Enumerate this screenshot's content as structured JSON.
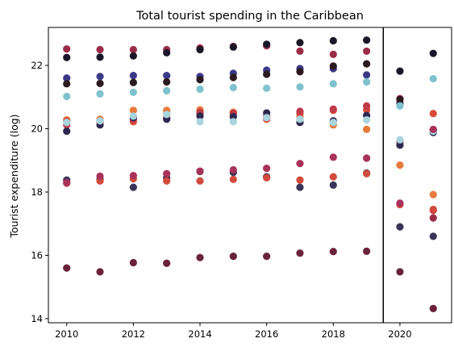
{
  "chart_data": {
    "type": "scatter",
    "title": "Total tourist spending in the Caribbean",
    "xlabel": "",
    "ylabel": "Tourist expenditure (log)",
    "xlim": [
      2009.45,
      2021.55
    ],
    "ylim": [
      13.87,
      23.2
    ],
    "x_ticks": [
      2010,
      2012,
      2014,
      2016,
      2018,
      2020
    ],
    "y_ticks": [
      14,
      16,
      18,
      20,
      22
    ],
    "vline": 2019.5,
    "grid": false,
    "legend": "none",
    "series": [
      {
        "color": "#9b2c48",
        "x": [
          2010,
          2011,
          2012,
          2013,
          2014,
          2015,
          2016,
          2017,
          2018,
          2019,
          2020,
          2021
        ],
        "y": [
          22.52,
          22.5,
          22.5,
          22.5,
          22.55,
          22.6,
          22.62,
          22.45,
          22.35,
          22.45,
          20.95,
          17.18
        ]
      },
      {
        "color": "#1c1728",
        "x": [
          2010,
          2011,
          2012,
          2013,
          2014,
          2015,
          2016,
          2017,
          2018,
          2019,
          2020,
          2021
        ],
        "y": [
          22.25,
          22.26,
          22.3,
          22.4,
          22.5,
          22.58,
          22.67,
          22.72,
          22.78,
          22.8,
          21.82,
          22.38
        ]
      },
      {
        "color": "#3b3986",
        "x": [
          2010,
          2011,
          2012,
          2013,
          2014,
          2015,
          2016,
          2017,
          2018,
          2019,
          2020,
          2021
        ],
        "y": [
          21.6,
          21.65,
          21.68,
          21.68,
          21.65,
          21.75,
          21.85,
          21.9,
          21.9,
          21.7,
          20.8,
          19.95
        ]
      },
      {
        "color": "#2b1a1f",
        "x": [
          2010,
          2011,
          2012,
          2013,
          2014,
          2015,
          2016,
          2017,
          2018,
          2019,
          2020,
          2021
        ],
        "y": [
          21.42,
          21.43,
          21.46,
          21.48,
          21.55,
          21.62,
          21.72,
          21.8,
          21.98,
          22.05,
          20.92,
          19.95
        ]
      },
      {
        "color": "#7fc1cf",
        "x": [
          2010,
          2011,
          2012,
          2013,
          2014,
          2015,
          2016,
          2017,
          2018,
          2019,
          2020,
          2021
        ],
        "y": [
          21.02,
          21.1,
          21.15,
          21.2,
          21.25,
          21.3,
          21.28,
          21.32,
          21.42,
          21.48,
          20.72,
          21.58
        ]
      },
      {
        "color": "#e77b3c",
        "x": [
          2010,
          2011,
          2012,
          2013,
          2014,
          2015,
          2016,
          2017,
          2018,
          2019,
          2020,
          2021
        ],
        "y": [
          20.28,
          20.3,
          20.58,
          20.58,
          20.6,
          20.52,
          20.4,
          20.38,
          20.12,
          19.98,
          18.85,
          17.92
        ]
      },
      {
        "color": "#d94a38",
        "x": [
          2010,
          2011,
          2012,
          2013,
          2014,
          2015,
          2016,
          2017,
          2018,
          2019,
          2020,
          2021
        ],
        "y": [
          20.25,
          20.25,
          20.22,
          20.35,
          20.45,
          20.5,
          20.3,
          20.48,
          20.58,
          20.6,
          19.58,
          20.48
        ]
      },
      {
        "color": "#c03a48",
        "x": [
          2010,
          2011,
          2012,
          2013,
          2014,
          2015,
          2016,
          2017,
          2018,
          2019,
          2020,
          2021
        ],
        "y": [
          20.12,
          20.2,
          20.3,
          20.45,
          20.52,
          20.48,
          20.38,
          20.55,
          20.62,
          20.72,
          19.6,
          17.42
        ]
      },
      {
        "color": "#2e2850",
        "x": [
          2010,
          2011,
          2012,
          2013,
          2014,
          2015,
          2016,
          2017,
          2018,
          2019,
          2020,
          2021
        ],
        "y": [
          19.92,
          20.12,
          20.35,
          20.3,
          20.4,
          20.38,
          20.5,
          20.2,
          20.25,
          20.42,
          19.48,
          19.88
        ]
      },
      {
        "color": "#a8d4dd",
        "x": [
          2010,
          2011,
          2012,
          2013,
          2014,
          2015,
          2016,
          2017,
          2018,
          2019,
          2020,
          2021
        ],
        "y": [
          20.2,
          20.25,
          20.4,
          20.45,
          20.22,
          20.22,
          20.35,
          20.3,
          20.2,
          20.28,
          19.65,
          19.92
        ]
      },
      {
        "color": "#3a3458",
        "x": [
          2010,
          2011,
          2012,
          2013,
          2014,
          2015,
          2016,
          2017,
          2018,
          2019,
          2020,
          2021
        ],
        "y": [
          18.38,
          18.4,
          18.15,
          18.45,
          18.65,
          18.62,
          18.48,
          18.15,
          18.22,
          18.6,
          16.9,
          16.6
        ]
      },
      {
        "color": "#d24a3c",
        "x": [
          2010,
          2011,
          2012,
          2013,
          2014,
          2015,
          2016,
          2017,
          2018,
          2019,
          2020,
          2021
        ],
        "y": [
          18.28,
          18.35,
          18.42,
          18.35,
          18.35,
          18.4,
          18.45,
          18.38,
          18.48,
          18.58,
          17.6,
          17.45
        ]
      },
      {
        "color": "#a8325a",
        "x": [
          2010,
          2011,
          2012,
          2013,
          2014,
          2015,
          2016,
          2017,
          2018,
          2019,
          2020,
          2021
        ],
        "y": [
          18.3,
          18.5,
          18.52,
          18.58,
          18.66,
          18.7,
          18.75,
          18.9,
          19.1,
          19.07,
          17.65,
          19.98
        ]
      },
      {
        "color": "#6a2338",
        "x": [
          2010,
          2011,
          2012,
          2013,
          2014,
          2015,
          2016,
          2017,
          2018,
          2019,
          2020,
          2021
        ],
        "y": [
          15.6,
          15.48,
          15.77,
          15.75,
          15.93,
          15.97,
          15.97,
          16.07,
          16.12,
          16.13,
          15.48,
          14.32
        ]
      }
    ]
  }
}
